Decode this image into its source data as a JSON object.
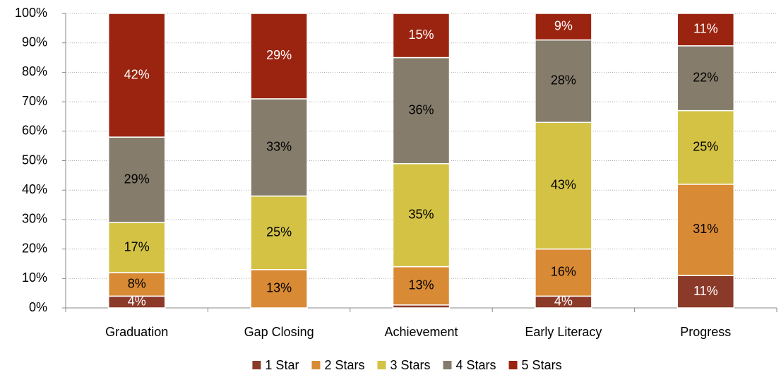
{
  "chart_data": {
    "type": "stacked_bar",
    "categories": [
      "Graduation",
      "Gap Closing",
      "Achievement",
      "Early Literacy",
      "Progress"
    ],
    "series": [
      {
        "name": "1 Star",
        "color": "#8b3a2a",
        "values": [
          4,
          0,
          1,
          4,
          11
        ],
        "value_labels": [
          "4%",
          null,
          null,
          "4%",
          "11%"
        ]
      },
      {
        "name": "2 Stars",
        "color": "#d98a35",
        "values": [
          8,
          13,
          13,
          16,
          31
        ],
        "value_labels": [
          "8%",
          "13%",
          "13%",
          "16%",
          "31%"
        ]
      },
      {
        "name": "3 Stars",
        "color": "#d4c244",
        "values": [
          17,
          25,
          35,
          43,
          25
        ],
        "value_labels": [
          "17%",
          "25%",
          "35%",
          "43%",
          "25%"
        ]
      },
      {
        "name": "4 Stars",
        "color": "#857c6b",
        "values": [
          29,
          33,
          36,
          28,
          22
        ],
        "value_labels": [
          "29%",
          "33%",
          "36%",
          "28%",
          "22%"
        ]
      },
      {
        "name": "5 Stars",
        "color": "#9b2410",
        "values": [
          42,
          29,
          15,
          9,
          11
        ],
        "value_labels": [
          "42%",
          "29%",
          "15%",
          "9%",
          "11%"
        ]
      }
    ],
    "ylim": [
      0,
      100
    ],
    "yticks": [
      {
        "value": 0,
        "label": "0%"
      },
      {
        "value": 10,
        "label": "10%"
      },
      {
        "value": 20,
        "label": "20%"
      },
      {
        "value": 30,
        "label": "30%"
      },
      {
        "value": 40,
        "label": "40%"
      },
      {
        "value": 50,
        "label": "50%"
      },
      {
        "value": 60,
        "label": "60%"
      },
      {
        "value": 70,
        "label": "70%"
      },
      {
        "value": 80,
        "label": "80%"
      },
      {
        "value": 90,
        "label": "90%"
      },
      {
        "value": 100,
        "label": "100%"
      }
    ],
    "grid": true,
    "legend": "bottom"
  }
}
